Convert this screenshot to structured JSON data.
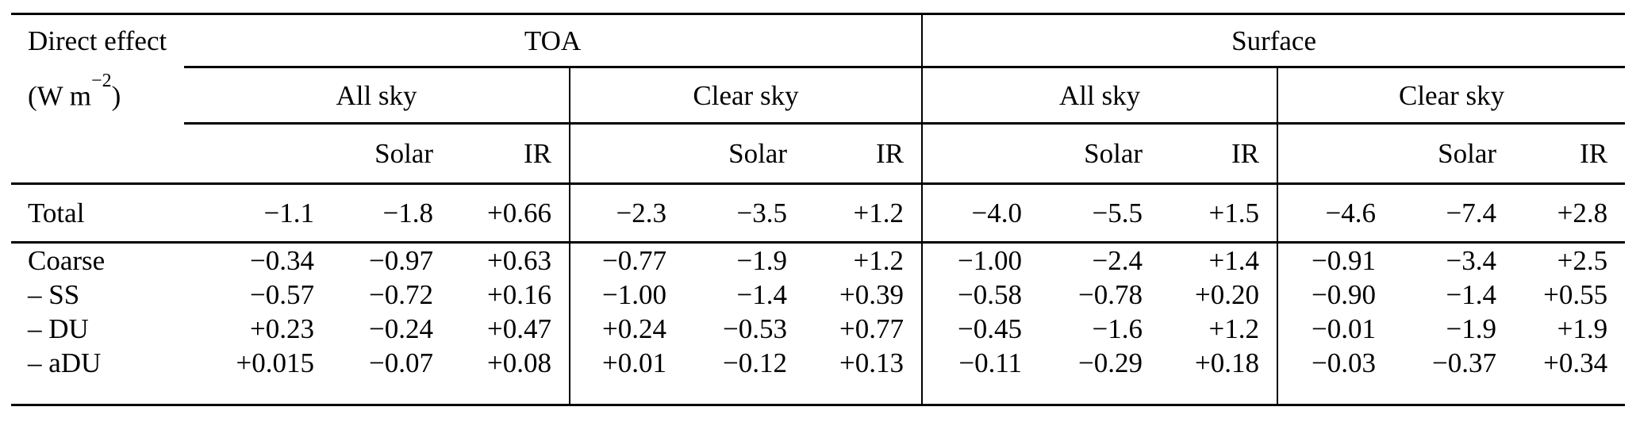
{
  "page": {
    "background_color": "#ffffff",
    "text_color": "#000000",
    "rule_color": "#000000"
  },
  "table": {
    "corner": {
      "title": "Direct effect",
      "unit_prefix": "(W m",
      "unit_exponent": "−2",
      "unit_suffix": ")"
    },
    "top_headers": [
      {
        "label": "TOA"
      },
      {
        "label": "Surface"
      }
    ],
    "sky_headers": [
      "All sky",
      "Clear sky",
      "All sky",
      "Clear sky"
    ],
    "sub_headers": [
      "",
      "Solar",
      "IR"
    ],
    "rows": [
      {
        "label": "Total",
        "values": [
          "−1.1",
          "−1.8",
          "+0.66",
          "−2.3",
          "−3.5",
          "+1.2",
          "−4.0",
          "−5.5",
          "+1.5",
          "−4.6",
          "−7.4",
          "+2.8"
        ]
      },
      {
        "label": "Coarse",
        "values": [
          "−0.34",
          "−0.97",
          "+0.63",
          "−0.77",
          "−1.9",
          "+1.2",
          "−1.00",
          "−2.4",
          "+1.4",
          "−0.91",
          "−3.4",
          "+2.5"
        ]
      },
      {
        "label": "– SS",
        "values": [
          "−0.57",
          "−0.72",
          "+0.16",
          "−1.00",
          "−1.4",
          "+0.39",
          "−0.58",
          "−0.78",
          "+0.20",
          "−0.90",
          "−1.4",
          "+0.55"
        ]
      },
      {
        "label": "– DU",
        "values": [
          "+0.23",
          "−0.24",
          "+0.47",
          "+0.24",
          "−0.53",
          "+0.77",
          "−0.45",
          "−1.6",
          "+1.2",
          "−0.01",
          "−1.9",
          "+1.9"
        ]
      },
      {
        "label": "– aDU",
        "values": [
          "+0.015",
          "−0.07",
          "+0.08",
          "+0.01",
          "−0.12",
          "+0.13",
          "−0.11",
          "−0.29",
          "+0.18",
          "−0.03",
          "−0.37",
          "+0.34"
        ]
      }
    ]
  }
}
